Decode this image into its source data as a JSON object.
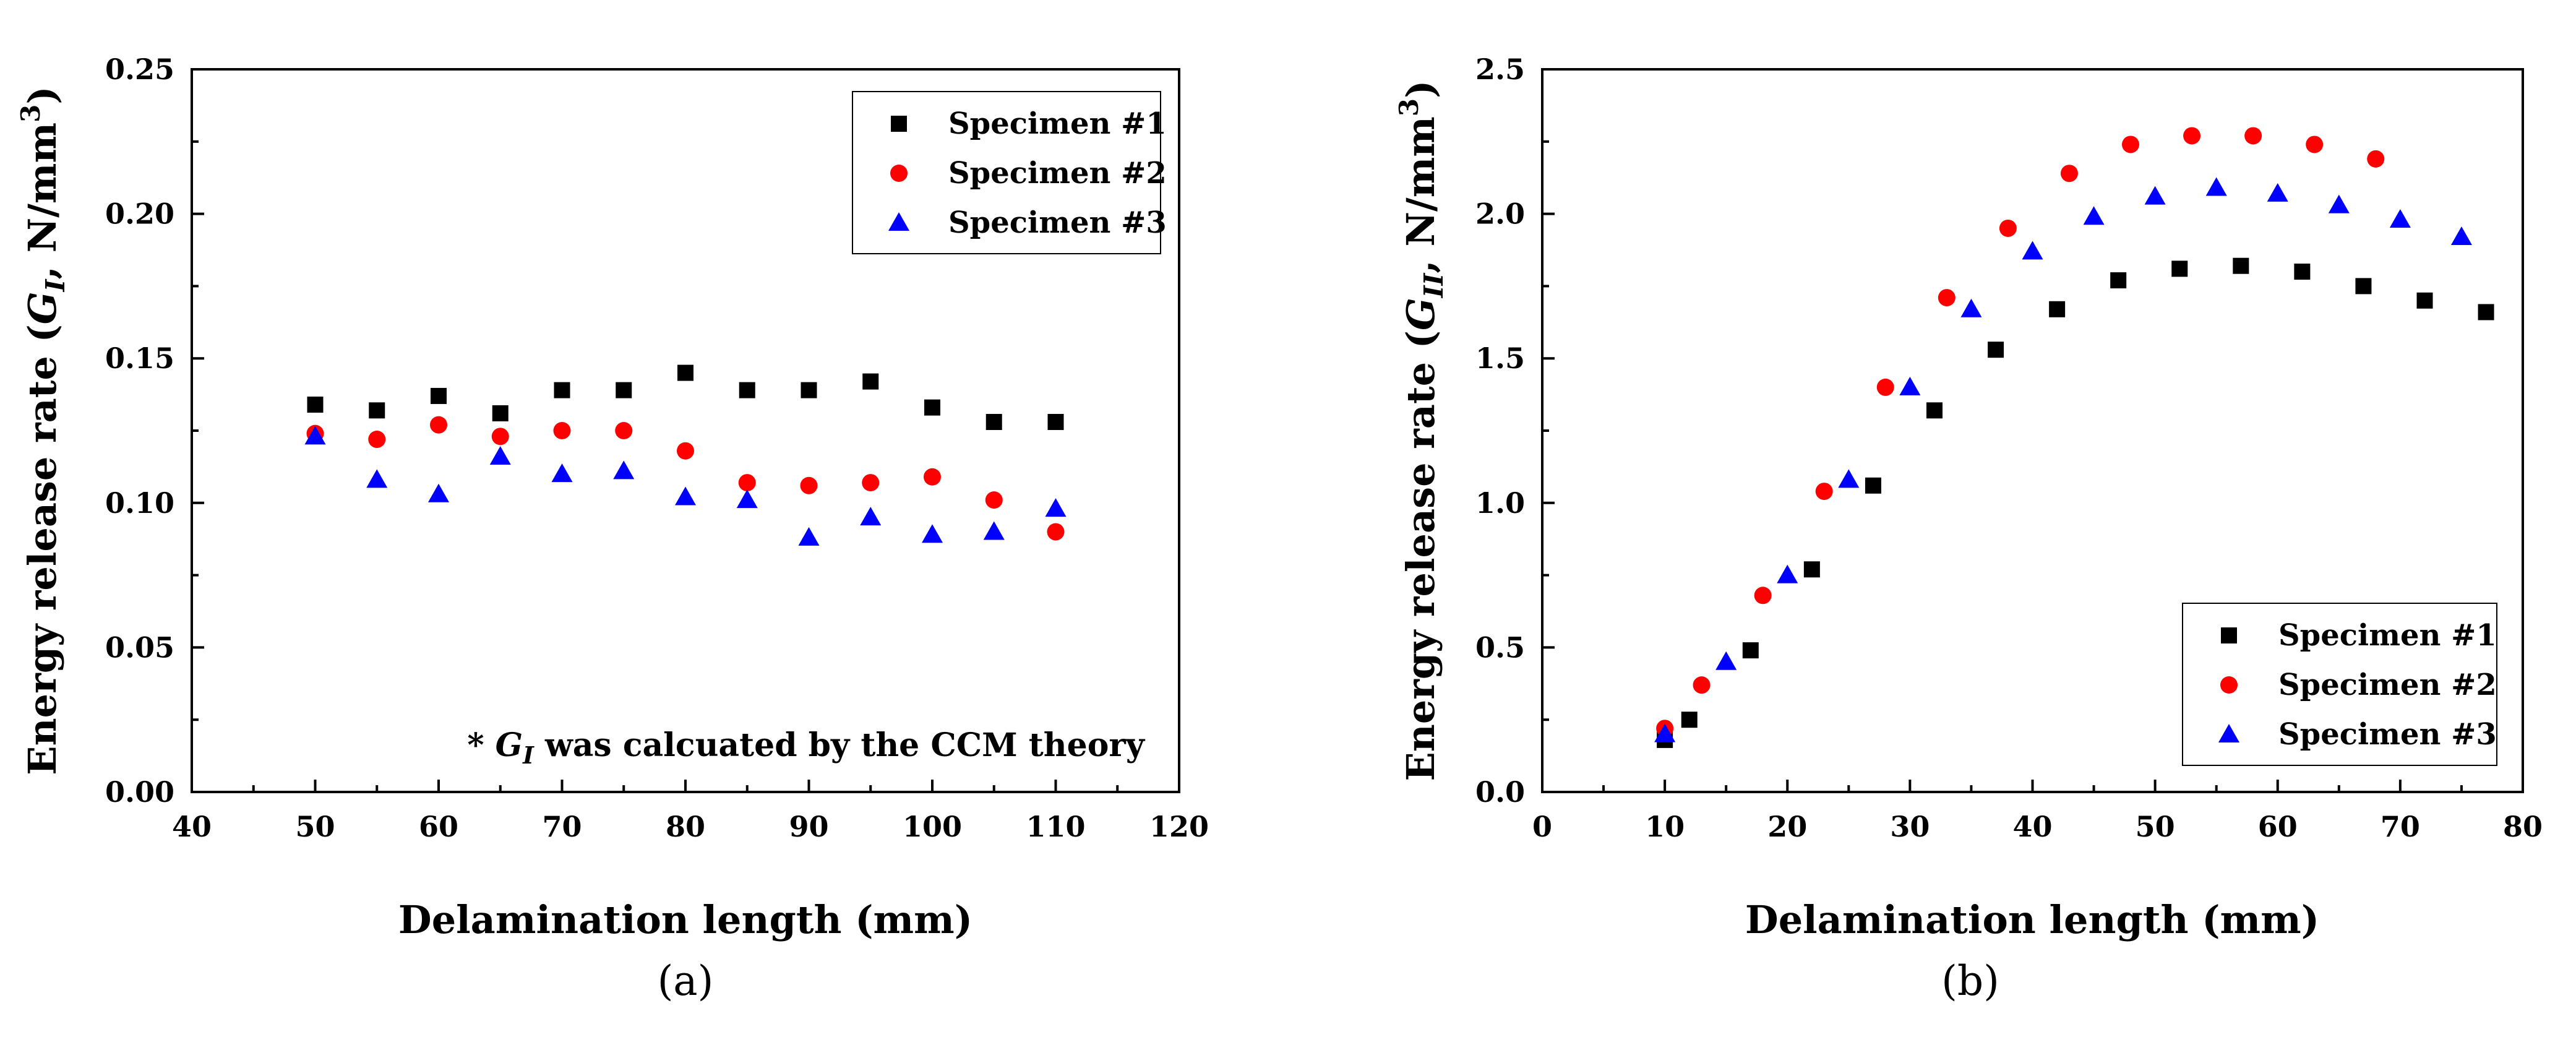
{
  "chart_data": [
    {
      "type": "scatter",
      "panel_label": "(a)",
      "xlabel": "Delamination length (mm)",
      "ylabel": "Energy release rate (G_I, N/mm³)",
      "ylabel_parts": {
        "prefix": "Energy release rate (",
        "symbol": "G",
        "subscript": "I",
        "suffix": ", N/mm",
        "superscript": "3",
        "close": ")"
      },
      "xlim": [
        40,
        120
      ],
      "ylim": [
        0,
        0.25
      ],
      "x_ticks": [
        40,
        50,
        60,
        70,
        80,
        90,
        100,
        110,
        120
      ],
      "x_tick_labels": [
        "40",
        "50",
        "60",
        "70",
        "80",
        "90",
        "100",
        "110",
        "120"
      ],
      "y_ticks": [
        0,
        0.05,
        0.1,
        0.15,
        0.2,
        0.25
      ],
      "y_tick_labels": [
        "0.00",
        "0.05",
        "0.10",
        "0.15",
        "0.20",
        "0.25"
      ],
      "legend_position": "top-right",
      "annotation": {
        "prefix": "* ",
        "symbol": "G",
        "subscript": "I",
        "text": " was calcuated by the CCM theory"
      },
      "series": [
        {
          "name": "Specimen #1",
          "marker": "square",
          "color": "#000000",
          "x": [
            50,
            55,
            60,
            65,
            70,
            75,
            80,
            85,
            90,
            95,
            100,
            105,
            110
          ],
          "y": [
            0.134,
            0.132,
            0.137,
            0.131,
            0.139,
            0.139,
            0.145,
            0.139,
            0.139,
            0.142,
            0.133,
            0.128,
            0.128
          ]
        },
        {
          "name": "Specimen #2",
          "marker": "circle",
          "color": "#ff0000",
          "x": [
            50,
            55,
            60,
            65,
            70,
            75,
            80,
            85,
            90,
            95,
            100,
            105,
            110
          ],
          "y": [
            0.124,
            0.122,
            0.127,
            0.123,
            0.125,
            0.125,
            0.118,
            0.107,
            0.106,
            0.107,
            0.109,
            0.101,
            0.09
          ]
        },
        {
          "name": "Specimen #3",
          "marker": "triangle",
          "color": "#0000ff",
          "x": [
            50,
            55,
            60,
            65,
            70,
            75,
            80,
            85,
            90,
            95,
            100,
            105,
            110
          ],
          "y": [
            0.123,
            0.108,
            0.103,
            0.116,
            0.11,
            0.111,
            0.102,
            0.101,
            0.088,
            0.095,
            0.089,
            0.09,
            0.098
          ]
        }
      ]
    },
    {
      "type": "scatter",
      "panel_label": "(b)",
      "xlabel": "Delamination length (mm)",
      "ylabel": "Energy release rate (G_II, N/mm³)",
      "ylabel_parts": {
        "prefix": "Energy release rate (",
        "symbol": "G",
        "subscript": "II",
        "suffix": ", N/mm",
        "superscript": "3",
        "close": ")"
      },
      "xlim": [
        0,
        80
      ],
      "ylim": [
        0,
        2.5
      ],
      "x_ticks": [
        0,
        10,
        20,
        30,
        40,
        50,
        60,
        70,
        80
      ],
      "x_tick_labels": [
        "0",
        "10",
        "20",
        "30",
        "40",
        "50",
        "60",
        "70",
        "80"
      ],
      "y_ticks": [
        0,
        0.5,
        1,
        1.5,
        2,
        2.5
      ],
      "y_tick_labels": [
        "0.0",
        "0.5",
        "1.0",
        "1.5",
        "2.0",
        "2.5"
      ],
      "legend_position": "bottom-right",
      "series": [
        {
          "name": "Specimen #1",
          "marker": "square",
          "color": "#000000",
          "x": [
            10,
            12,
            17,
            22,
            27,
            32,
            37,
            42,
            47,
            52,
            57,
            62,
            67,
            72,
            77
          ],
          "y": [
            0.18,
            0.25,
            0.49,
            0.77,
            1.06,
            1.32,
            1.53,
            1.67,
            1.77,
            1.81,
            1.82,
            1.8,
            1.75,
            1.7,
            1.66
          ]
        },
        {
          "name": "Specimen #2",
          "marker": "circle",
          "color": "#ff0000",
          "x": [
            10,
            13,
            18,
            23,
            28,
            33,
            38,
            43,
            48,
            53,
            58,
            63,
            68
          ],
          "y": [
            0.22,
            0.37,
            0.68,
            1.04,
            1.4,
            1.71,
            1.95,
            2.14,
            2.24,
            2.27,
            2.27,
            2.24,
            2.19
          ]
        },
        {
          "name": "Specimen #3",
          "marker": "triangle",
          "color": "#0000ff",
          "x": [
            10,
            15,
            20,
            25,
            30,
            35,
            40,
            45,
            50,
            55,
            60,
            65,
            70,
            75
          ],
          "y": [
            0.2,
            0.45,
            0.75,
            1.08,
            1.4,
            1.67,
            1.87,
            1.99,
            2.06,
            2.09,
            2.07,
            2.03,
            1.98,
            1.92
          ]
        }
      ]
    }
  ]
}
